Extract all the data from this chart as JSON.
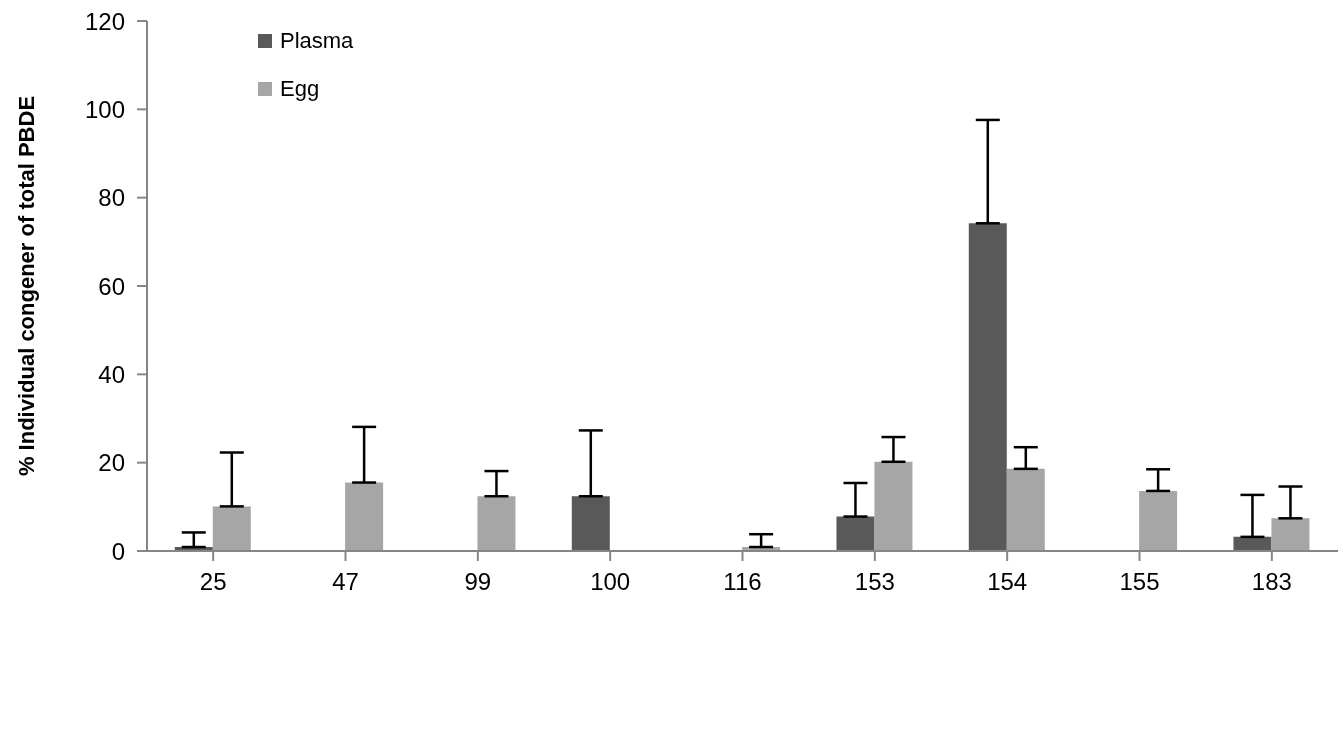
{
  "chart_data": {
    "type": "bar",
    "ylabel": "% Individual congener of total PBDE",
    "categories": [
      "25",
      "47",
      "99",
      "100",
      "116",
      "153",
      "154",
      "155",
      "183"
    ],
    "series": [
      {
        "name": "Plasma",
        "color": "#595959",
        "values": [
          0.9,
          null,
          null,
          12.4,
          null,
          7.8,
          74.2,
          null,
          3.2
        ],
        "errors": [
          [
            0.9,
            4.2
          ],
          null,
          null,
          [
            12.4,
            27.3
          ],
          null,
          [
            7.8,
            15.4
          ],
          [
            74.2,
            97.6
          ],
          null,
          [
            3.2,
            12.7
          ]
        ]
      },
      {
        "name": "Egg",
        "color": "#a6a6a6",
        "values": [
          10.1,
          15.5,
          12.4,
          null,
          0.9,
          20.2,
          18.6,
          13.6,
          7.4
        ],
        "errors": [
          [
            10.1,
            22.3
          ],
          [
            15.5,
            28.1
          ],
          [
            12.4,
            18.1
          ],
          null,
          [
            0.9,
            3.8
          ],
          [
            20.2,
            25.8
          ],
          [
            18.6,
            23.5
          ],
          [
            13.6,
            18.5
          ],
          [
            7.4,
            14.6
          ]
        ]
      }
    ],
    "ylim": [
      0,
      120
    ],
    "yticks": [
      0,
      20,
      40,
      60,
      80,
      100,
      120
    ],
    "grid": false,
    "legend": "top left"
  }
}
